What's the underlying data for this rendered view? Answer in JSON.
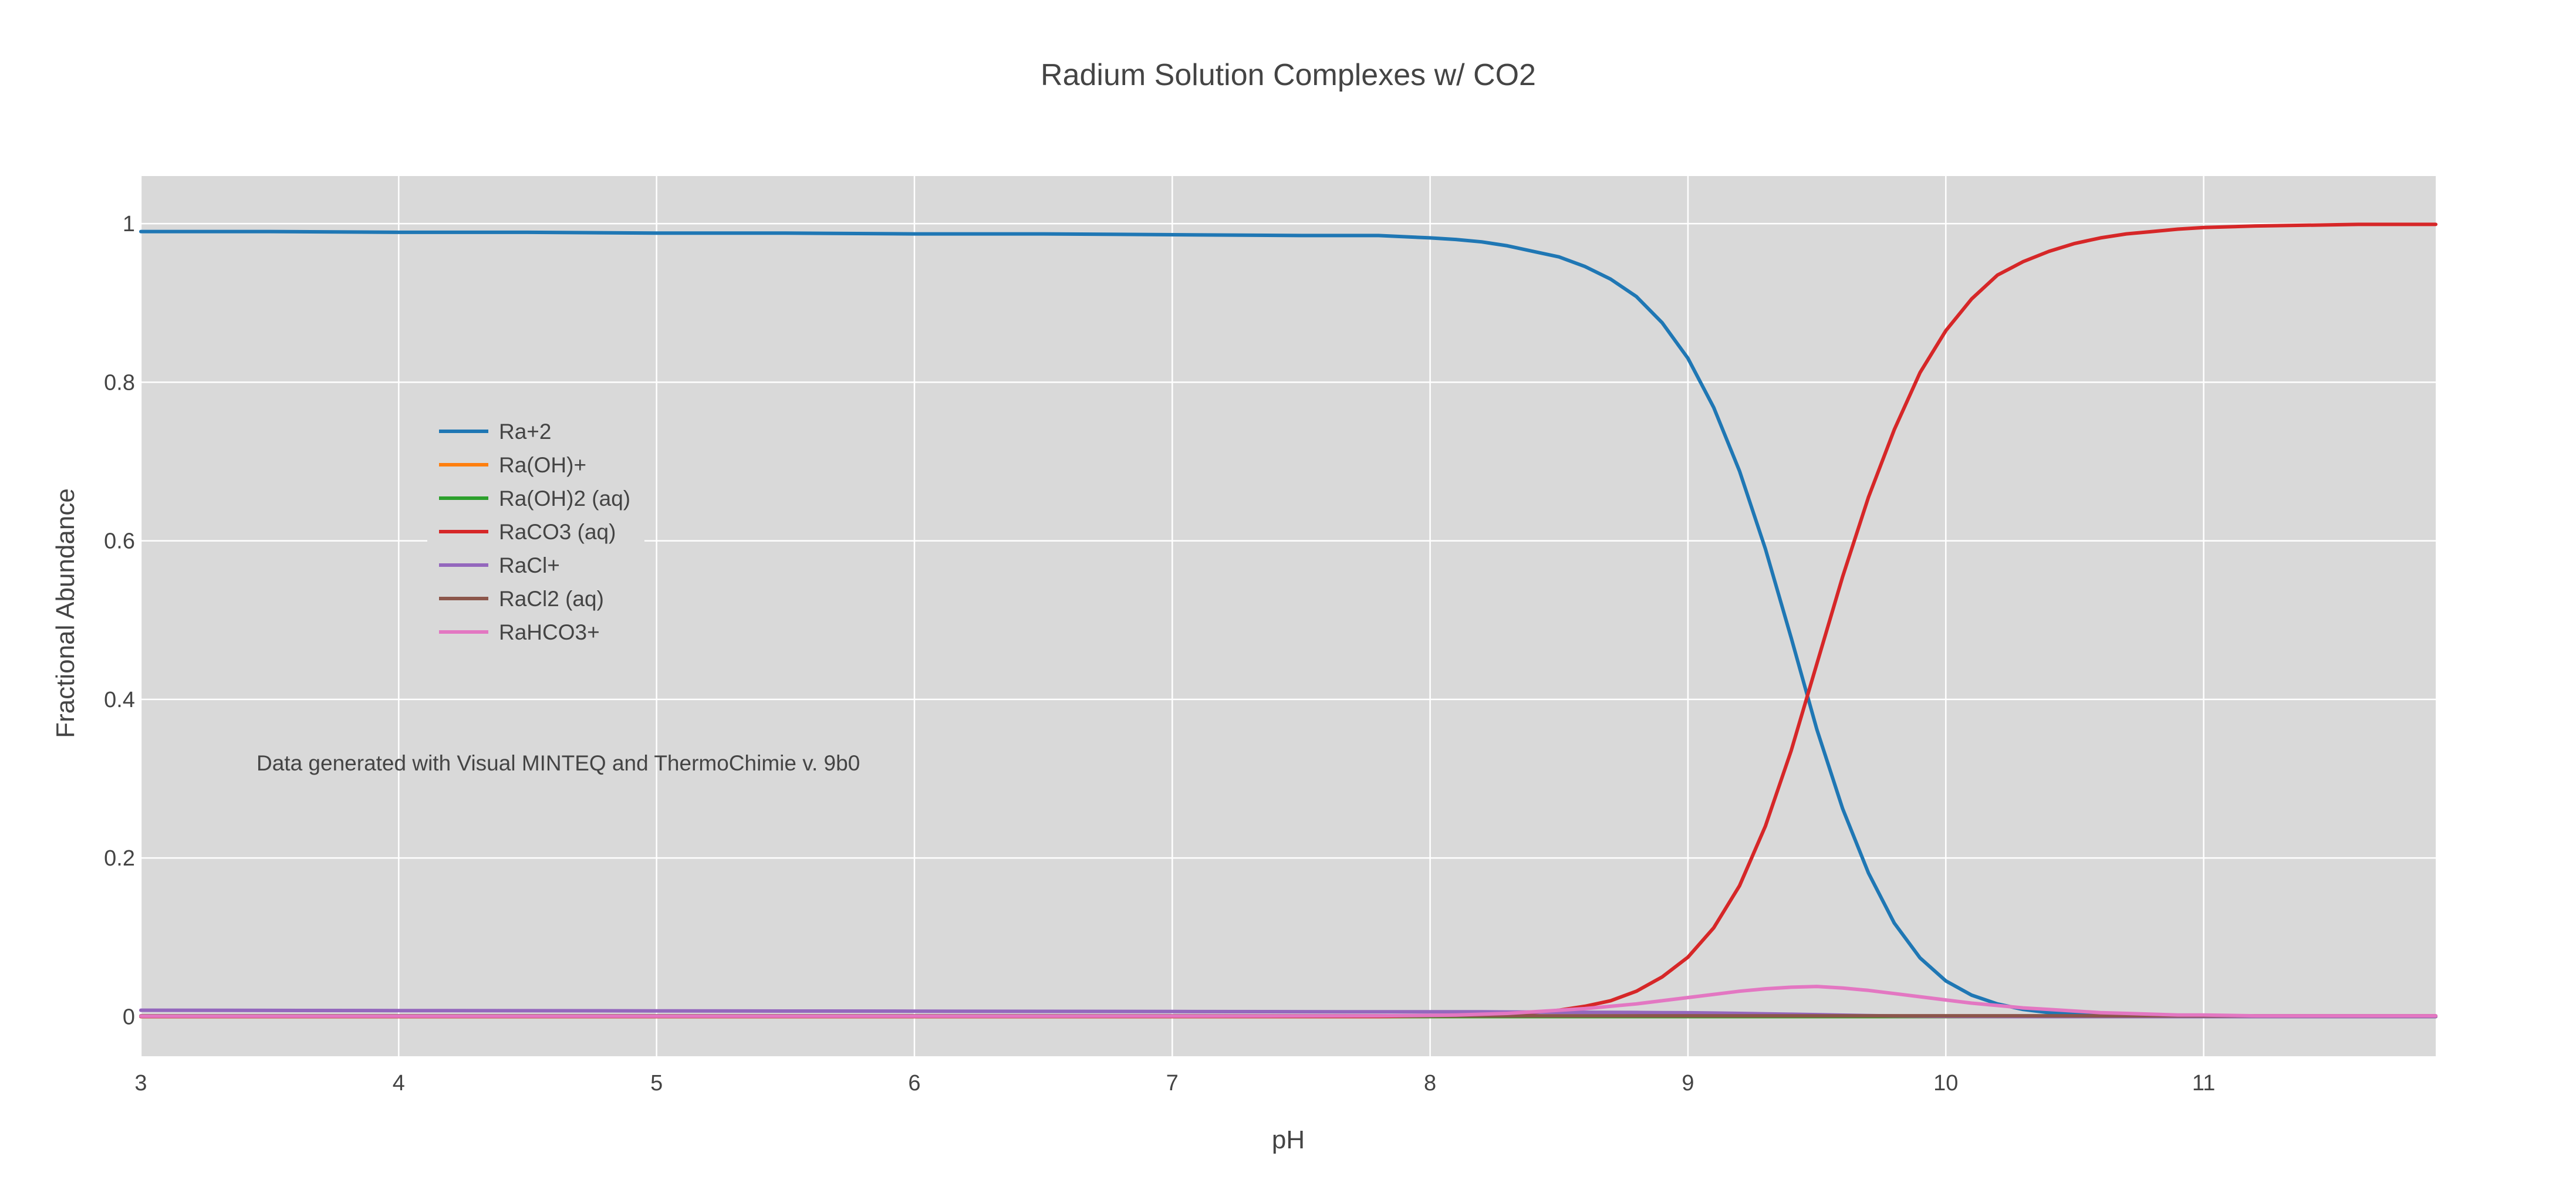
{
  "chart_data": {
    "type": "line",
    "title": "Radium Solution Complexes w/ CO2",
    "xlabel": "pH",
    "ylabel": "Fractional Abundance",
    "xlim": [
      3,
      11.9
    ],
    "ylim": [
      -0.05,
      1.06
    ],
    "xticks": [
      3,
      4,
      5,
      6,
      7,
      8,
      9,
      10,
      11
    ],
    "yticks": [
      0,
      0.2,
      0.4,
      0.6,
      0.8,
      1
    ],
    "ytick_labels": [
      "0",
      "0.2",
      "0.4",
      "0.6",
      "0.8",
      "1"
    ],
    "grid": true,
    "legend_placement": "upper-left inside plot",
    "annotation": "Data generated with Visual MINTEQ and ThermoChimie v. 9b0",
    "x": [
      3,
      3.5,
      4,
      4.5,
      5,
      5.5,
      6,
      6.5,
      7,
      7.5,
      7.8,
      8,
      8.1,
      8.2,
      8.3,
      8.4,
      8.5,
      8.6,
      8.7,
      8.8,
      8.9,
      9,
      9.1,
      9.2,
      9.3,
      9.4,
      9.5,
      9.6,
      9.7,
      9.8,
      9.9,
      10,
      10.1,
      10.2,
      10.3,
      10.4,
      10.5,
      10.6,
      10.7,
      10.8,
      10.9,
      11,
      11.2,
      11.4,
      11.6,
      11.9
    ],
    "series": [
      {
        "name": "Ra+2",
        "color": "#1f77b4",
        "values": [
          0.99,
          0.99,
          0.989,
          0.989,
          0.988,
          0.988,
          0.987,
          0.987,
          0.986,
          0.985,
          0.985,
          0.982,
          0.98,
          0.977,
          0.972,
          0.965,
          0.958,
          0.946,
          0.93,
          0.908,
          0.875,
          0.83,
          0.768,
          0.688,
          0.59,
          0.478,
          0.362,
          0.262,
          0.181,
          0.118,
          0.074,
          0.045,
          0.027,
          0.016,
          0.009,
          0.005,
          0.003,
          0.002,
          0.001,
          0.001,
          0,
          0,
          0,
          0,
          0,
          0
        ]
      },
      {
        "name": "Ra(OH)+",
        "color": "#ff7f0e",
        "values": [
          0,
          0,
          0,
          0,
          0,
          0,
          0,
          0,
          0,
          0,
          0,
          0,
          0,
          0,
          0,
          0,
          0,
          0,
          0,
          0,
          0,
          0,
          0,
          0,
          0,
          0,
          0,
          0,
          0,
          0,
          0,
          0,
          0,
          0,
          0,
          0,
          0,
          0,
          0,
          0,
          0,
          0,
          0,
          0,
          0,
          0
        ]
      },
      {
        "name": "Ra(OH)2 (aq)",
        "color": "#2ca02c",
        "values": [
          0,
          0,
          0,
          0,
          0,
          0,
          0,
          0,
          0,
          0,
          0,
          0,
          0,
          0,
          0,
          0,
          0,
          0,
          0,
          0,
          0,
          0,
          0,
          0,
          0,
          0,
          0,
          0,
          0,
          0,
          0,
          0,
          0,
          0,
          0,
          0,
          0,
          0,
          0,
          0,
          0,
          0,
          0,
          0,
          0,
          0
        ]
      },
      {
        "name": "RaCO3 (aq)",
        "color": "#d62728",
        "values": [
          0,
          0,
          0,
          0,
          0,
          0,
          0,
          0,
          0,
          0,
          0,
          0.001,
          0.001,
          0.002,
          0.003,
          0.005,
          0.008,
          0.013,
          0.02,
          0.032,
          0.05,
          0.075,
          0.112,
          0.165,
          0.24,
          0.335,
          0.445,
          0.555,
          0.655,
          0.74,
          0.812,
          0.865,
          0.905,
          0.935,
          0.952,
          0.965,
          0.975,
          0.982,
          0.987,
          0.99,
          0.993,
          0.995,
          0.997,
          0.998,
          0.999,
          0.999
        ]
      },
      {
        "name": "RaCl+",
        "color": "#9467bd",
        "values": [
          0.008,
          0.0078,
          0.0076,
          0.0074,
          0.0072,
          0.007,
          0.0068,
          0.0066,
          0.0064,
          0.0062,
          0.006,
          0.006,
          0.006,
          0.006,
          0.0058,
          0.0057,
          0.0055,
          0.0054,
          0.0053,
          0.0052,
          0.005,
          0.0048,
          0.0045,
          0.004,
          0.0035,
          0.003,
          0.0025,
          0.0018,
          0.0012,
          0.0008,
          0.0005,
          0.0003,
          0.0002,
          0.0001,
          0,
          0,
          0,
          0,
          0,
          0,
          0,
          0,
          0,
          0,
          0,
          0
        ]
      },
      {
        "name": "RaCl2 (aq)",
        "color": "#8c564b",
        "values": [
          0.001,
          0.001,
          0.001,
          0.001,
          0.001,
          0.001,
          0.001,
          0.001,
          0.001,
          0.001,
          0.001,
          0.001,
          0.001,
          0.001,
          0.001,
          0.001,
          0.001,
          0.001,
          0.001,
          0.001,
          0.001,
          0.001,
          0.001,
          0.001,
          0.001,
          0.001,
          0.001,
          0.001,
          0.001,
          0.001,
          0.001,
          0.001,
          0.001,
          0.001,
          0.001,
          0.001,
          0.001,
          0.001,
          0.001,
          0.001,
          0.001,
          0.001,
          0.001,
          0.001,
          0.001,
          0.001
        ]
      },
      {
        "name": "RaHCO3+",
        "color": "#e377c2",
        "values": [
          0.0005,
          0.0005,
          0.0005,
          0.0005,
          0.0005,
          0.0005,
          0.0005,
          0.0005,
          0.0006,
          0.0008,
          0.001,
          0.0015,
          0.002,
          0.003,
          0.004,
          0.006,
          0.008,
          0.01,
          0.013,
          0.016,
          0.02,
          0.024,
          0.028,
          0.032,
          0.035,
          0.037,
          0.038,
          0.036,
          0.033,
          0.029,
          0.025,
          0.021,
          0.017,
          0.014,
          0.011,
          0.009,
          0.007,
          0.005,
          0.004,
          0.003,
          0.002,
          0.002,
          0.001,
          0.001,
          0.001,
          0.001
        ]
      }
    ]
  }
}
